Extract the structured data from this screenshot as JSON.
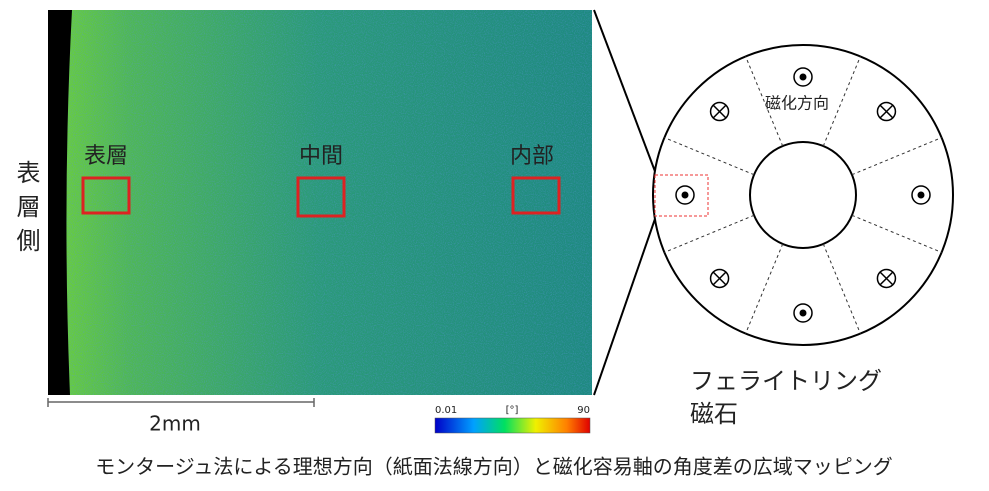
{
  "figure": {
    "side_label": "表層側",
    "regions": [
      "表層",
      "中間",
      "内部"
    ],
    "scale_bar": "2mm",
    "colorbar": {
      "min": "0.01",
      "unit": "[°]",
      "max": "90"
    },
    "magnet": {
      "direction_label": "磁化方向",
      "name_line1": "フェライトリング",
      "name_line2": "磁石"
    },
    "caption": "モンタージュ法による理想方向（紙面法線方向）と磁化容易軸の角度差の広域マッピング"
  }
}
